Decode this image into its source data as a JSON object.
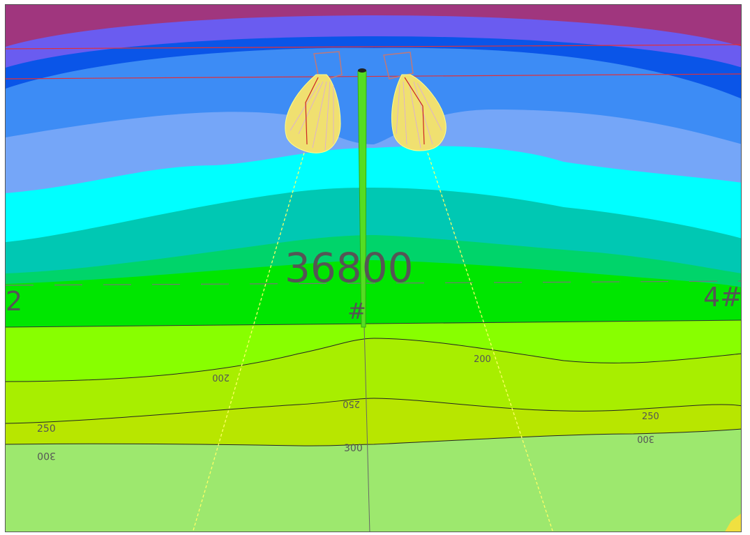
{
  "scene": {
    "pole_number": "36800",
    "pole_suffix": "#",
    "left_edge_label": "2",
    "right_edge_label": "4#",
    "contour_labels": [
      "200",
      "250",
      "250",
      "300",
      "300",
      "200",
      "250",
      "300"
    ],
    "band_colors": [
      "#a0367e",
      "#6a5cf0",
      "#0a55e8",
      "#3d8cf5",
      "#75a6f8",
      "#00ffff",
      "#00c8b3",
      "#00d46a",
      "#00e600",
      "#88ff00",
      "#a8ee00",
      "#b8e600",
      "#9de86e"
    ]
  }
}
